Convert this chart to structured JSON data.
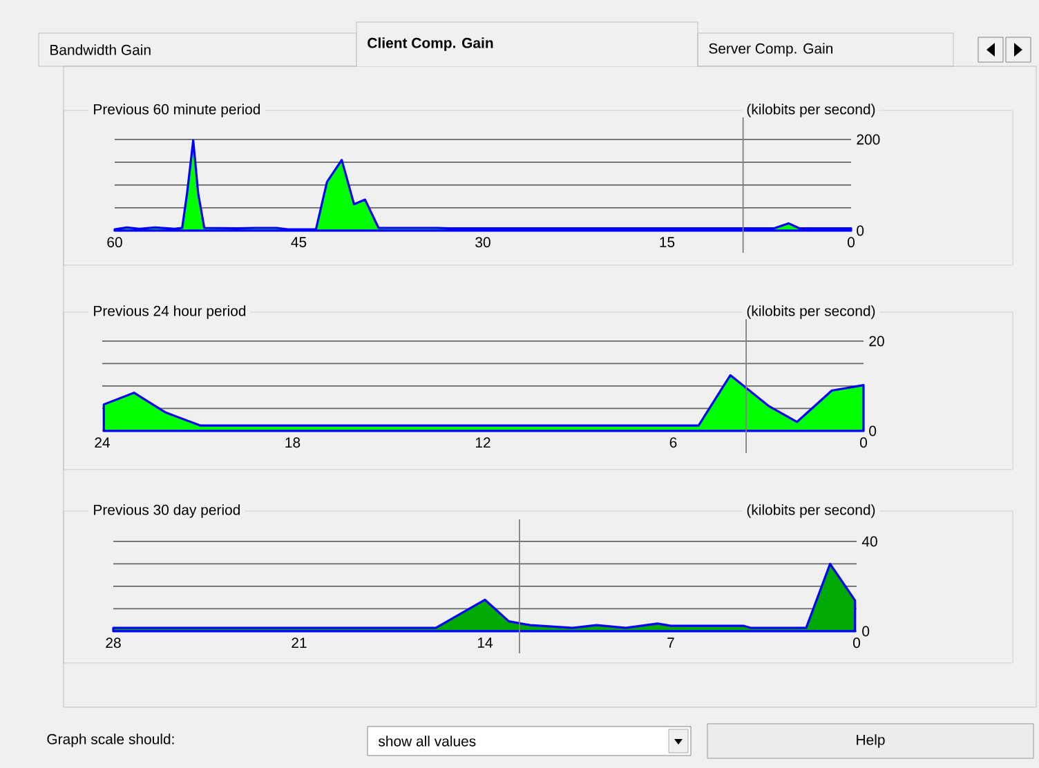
{
  "chart_data": [
    {
      "type": "area",
      "title": "Previous 60 minute period",
      "subtitle": "(kilobits per second)",
      "xlim": [
        60,
        0
      ],
      "xticks": [
        60,
        45,
        30,
        15,
        0
      ],
      "ylim": [
        0,
        200
      ],
      "yticks": [
        0,
        {
          "value": 50,
          "label": null
        },
        {
          "value": 100,
          "label": null
        },
        {
          "value": 150,
          "label": null
        },
        200
      ],
      "grid": "y",
      "ref_lines": [
        {
          "axis": "x",
          "value": 8.8,
          "color": "#808080"
        }
      ],
      "series": [
        {
          "color": "#00ff00",
          "x": [
            60,
            59,
            58,
            56.7,
            55.1,
            54.5,
            54.1,
            53.6,
            53.2,
            52.7,
            50,
            48.6,
            46.8,
            45.9,
            43.6,
            42.7,
            41.5,
            40.5,
            39.6,
            38.5,
            33.7,
            32.8,
            6.3,
            5.1,
            4.2,
            0
          ],
          "values": [
            3,
            7,
            4,
            7,
            4,
            6,
            82,
            198,
            82,
            6,
            5,
            6,
            6,
            3,
            3,
            107,
            155,
            58,
            68,
            6,
            6,
            5,
            5,
            16,
            5,
            5
          ]
        }
      ]
    },
    {
      "type": "area",
      "title": "Previous 24 hour period",
      "subtitle": "(kilobits per second)",
      "xlim": [
        24,
        0
      ],
      "xticks": [
        24,
        18,
        12,
        6,
        0
      ],
      "ylim": [
        0,
        20
      ],
      "yticks": [
        0,
        {
          "value": 5,
          "label": null
        },
        {
          "value": 10,
          "label": null
        },
        {
          "value": 15,
          "label": null
        },
        20
      ],
      "grid": "y",
      "ref_lines": [
        {
          "axis": "x",
          "value": 3.7,
          "color": "#808080"
        }
      ],
      "series": [
        {
          "color": "#00ff00",
          "x": [
            23.95,
            23,
            22,
            20.9,
            5.2,
            4.2,
            3.0,
            2.1,
            1.0,
            0
          ],
          "values": [
            5.9,
            8.5,
            4.1,
            1.2,
            1.2,
            12.4,
            5.6,
            2.0,
            9.0,
            10.2
          ]
        }
      ]
    },
    {
      "type": "area",
      "title": "Previous 30 day period",
      "subtitle": "(kilobits per second)",
      "xlim": [
        28,
        0
      ],
      "xticks": [
        28,
        21,
        14,
        7,
        0
      ],
      "ylim": [
        0,
        40
      ],
      "yticks": [
        0,
        {
          "value": 10,
          "label": null
        },
        {
          "value": 20,
          "label": null
        },
        {
          "value": 30,
          "label": null
        },
        40
      ],
      "grid": "y",
      "ref_lines": [
        {
          "axis": "x",
          "value": 12.7,
          "color": "#808080"
        }
      ],
      "series": [
        {
          "color": "#00aa00",
          "x": [
            28,
            15.85,
            14.0,
            13.1,
            12.3,
            10.7,
            9.8,
            8.7,
            7.5,
            7.0,
            4.25,
            4.0,
            1.9,
            1.0,
            0.06
          ],
          "values": [
            1.5,
            1.5,
            14,
            4.4,
            2.7,
            1.5,
            2.7,
            1.5,
            3.4,
            2.4,
            2.4,
            1.5,
            1.5,
            30,
            13.7
          ]
        }
      ]
    },
    {
      "type": "other",
      "annotations": [
        "Bandwidth Gain",
        "Client Comp. Gain",
        "Server Comp. Gain",
        "Graph scale should:",
        "show all values",
        "Help"
      ]
    }
  ]
}
